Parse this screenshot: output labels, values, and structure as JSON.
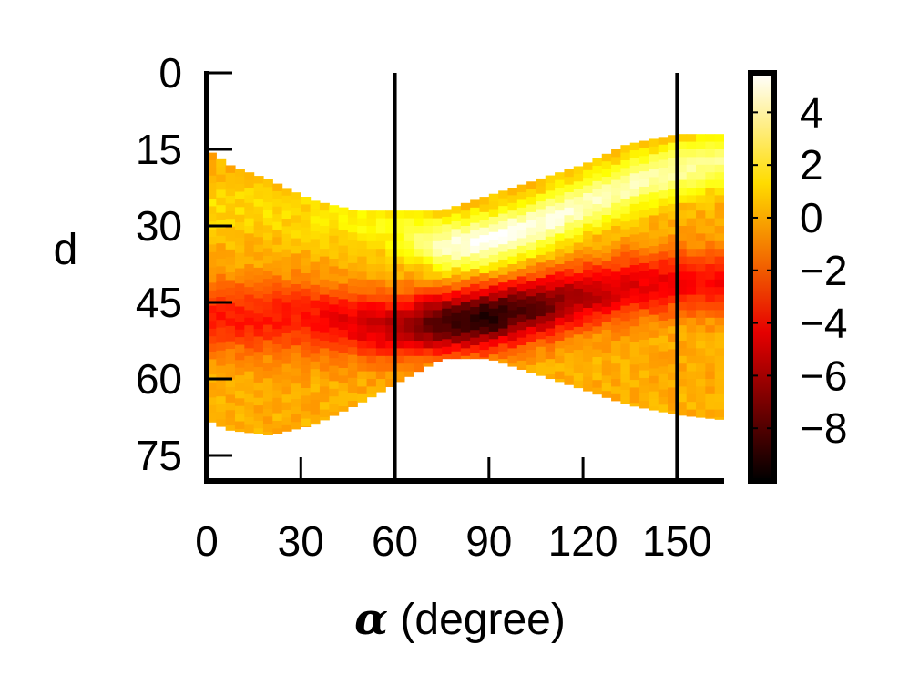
{
  "chart_data": {
    "type": "heatmap",
    "title": "",
    "xlabel_symbol": "α",
    "xlabel_text": " (degree)",
    "ylabel": "d",
    "xlim": [
      0,
      165
    ],
    "ylim": [
      80,
      0
    ],
    "y_inverted": true,
    "x_ticks": [
      0,
      30,
      60,
      90,
      120,
      150
    ],
    "x_tick_labels": [
      "0",
      "30",
      "60",
      "90",
      "120",
      "150"
    ],
    "y_ticks": [
      0,
      15,
      30,
      45,
      60,
      75
    ],
    "y_tick_labels": [
      "0",
      "15",
      "30",
      "45",
      "60",
      "75"
    ],
    "vertical_lines": [
      60,
      150
    ],
    "colorbar": {
      "range": [
        -10,
        5.5
      ],
      "colormap": "hot",
      "ticks": [
        4,
        2,
        0,
        -2,
        -4,
        -6,
        -8
      ],
      "tick_labels": [
        "4",
        "2",
        "0",
        "−2",
        "−4",
        "−6",
        "−8"
      ]
    },
    "envelope": {
      "alpha": [
        0,
        7,
        20,
        34,
        48,
        60,
        75,
        90,
        105,
        120,
        134,
        150,
        165
      ],
      "d_min": [
        15,
        18,
        21,
        25,
        27,
        27,
        27,
        24,
        21,
        18,
        14,
        12,
        12
      ],
      "d_max": [
        68,
        70,
        71,
        69,
        65,
        61,
        56,
        56,
        59,
        62,
        65,
        67,
        68
      ]
    },
    "ridges": {
      "high": {
        "alpha": [
          0,
          30,
          60,
          75,
          90,
          105,
          120,
          135,
          150,
          165
        ],
        "d": [
          26,
          28,
          31,
          34,
          33,
          30,
          26,
          22,
          19,
          17
        ],
        "value": [
          0.5,
          0.5,
          1.5,
          4.5,
          5.5,
          5,
          4.5,
          4.2,
          4,
          3.5
        ],
        "width": [
          6,
          6,
          5,
          5,
          5,
          5,
          5,
          5,
          5,
          5
        ]
      },
      "low": {
        "alpha": [
          0,
          30,
          60,
          75,
          90,
          105,
          120,
          135,
          150,
          165
        ],
        "d": [
          48,
          48,
          50,
          49,
          48,
          46,
          44,
          42,
          41,
          41
        ],
        "value": [
          -3.8,
          -3.8,
          -6,
          -8.5,
          -9.5,
          -8,
          -6,
          -5,
          -4.5,
          -4.2
        ],
        "width": [
          7,
          7,
          6,
          6,
          6,
          6,
          6,
          6,
          6,
          6
        ]
      }
    },
    "background_value": -0.5
  }
}
